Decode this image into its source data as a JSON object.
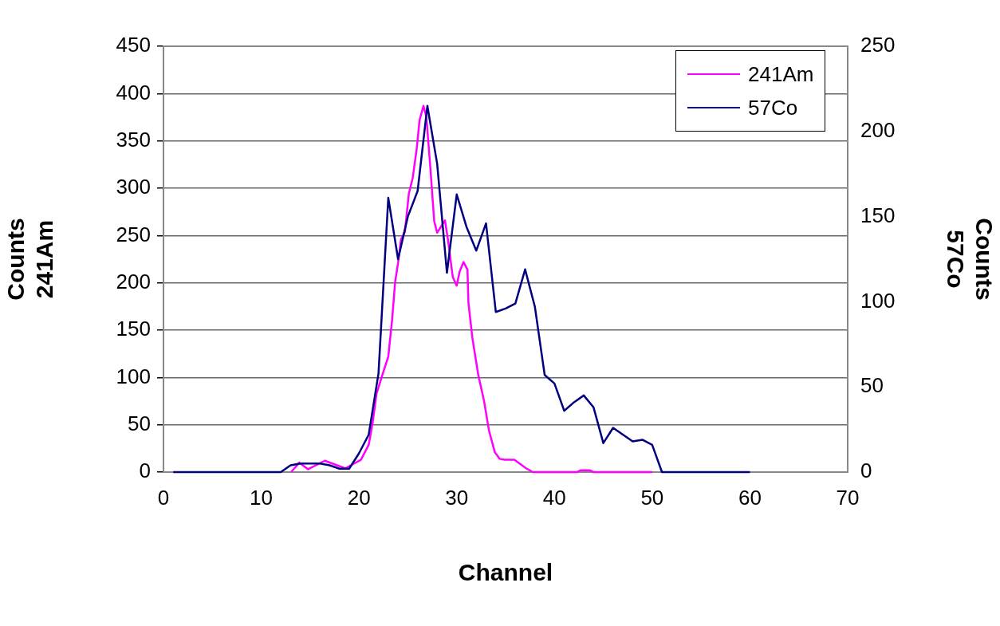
{
  "chart_data": {
    "type": "line",
    "xlabel": "Channel",
    "ylabel": "Counts\n241Am",
    "y2label": "Counts\n57Co",
    "xlim": [
      0,
      70
    ],
    "xticks": [
      0,
      10,
      20,
      30,
      40,
      50,
      60,
      70
    ],
    "ylim": [
      0,
      450
    ],
    "yticks": [
      0,
      50,
      100,
      150,
      200,
      250,
      300,
      350,
      400,
      450
    ],
    "y2lim": [
      0,
      250
    ],
    "y2ticks": [
      0,
      50,
      100,
      150,
      200,
      250
    ],
    "grid": "y",
    "legend": "top right",
    "marker": "none",
    "line_style": "solid",
    "series": [
      {
        "name": "241Am",
        "color": "#ff00ff",
        "x": [
          13.05,
          13.9,
          14.8,
          16.5,
          18.6,
          20.2,
          21.0,
          21.4,
          21.8,
          22.4,
          23.0,
          23.4,
          23.7,
          24.0,
          24.3,
          24.7,
          25.1,
          25.5,
          25.9,
          26.2,
          26.6,
          26.9,
          27.3,
          27.7,
          28.0,
          28.8,
          29.1,
          29.6,
          30.0,
          30.3,
          30.7,
          31.1,
          31.2,
          31.6,
          32.2,
          32.8,
          33.3,
          33.9,
          34.4,
          34.9,
          35.9,
          37.1,
          37.8,
          42.3,
          42.7,
          43.6,
          44.0,
          50
        ],
        "values": [
          0,
          10,
          3,
          12,
          4,
          13,
          29,
          52,
          83,
          103,
          122,
          162,
          201,
          221,
          246,
          254,
          294,
          311,
          341,
          372,
          387,
          375,
          322,
          265,
          253,
          266,
          246,
          206,
          197,
          212,
          222,
          214,
          179,
          142,
          103,
          75,
          44,
          21,
          14,
          13,
          13,
          4,
          0,
          0,
          2,
          2,
          0,
          0
        ]
      },
      {
        "name": "57Co",
        "color": "#000080",
        "axis": "y2",
        "x": [
          1,
          2,
          3,
          4,
          5,
          6,
          7,
          8,
          9,
          10,
          11,
          12,
          13,
          14,
          15,
          16,
          17,
          18,
          19,
          20,
          21,
          22,
          23,
          24,
          25,
          26,
          27,
          28,
          29,
          30,
          31,
          32,
          33,
          34,
          35,
          36,
          37,
          38,
          39,
          40,
          41,
          42,
          43,
          44,
          45,
          46,
          47,
          48,
          49,
          50,
          51,
          52,
          53,
          54,
          55,
          56,
          57,
          58,
          59,
          60
        ],
        "values": [
          0,
          0,
          0,
          0,
          0,
          0,
          0,
          0,
          0,
          0,
          0,
          0,
          4,
          5,
          5,
          5,
          4,
          2,
          2,
          11,
          22,
          58,
          161,
          125,
          150,
          165,
          215,
          181,
          117,
          163,
          144,
          130,
          146,
          94,
          96,
          99,
          119,
          97,
          57,
          52,
          36,
          41,
          45,
          38,
          17,
          26,
          22,
          18,
          19,
          16,
          0,
          0,
          0,
          0,
          0,
          0,
          0,
          0,
          0,
          0
        ]
      }
    ]
  }
}
